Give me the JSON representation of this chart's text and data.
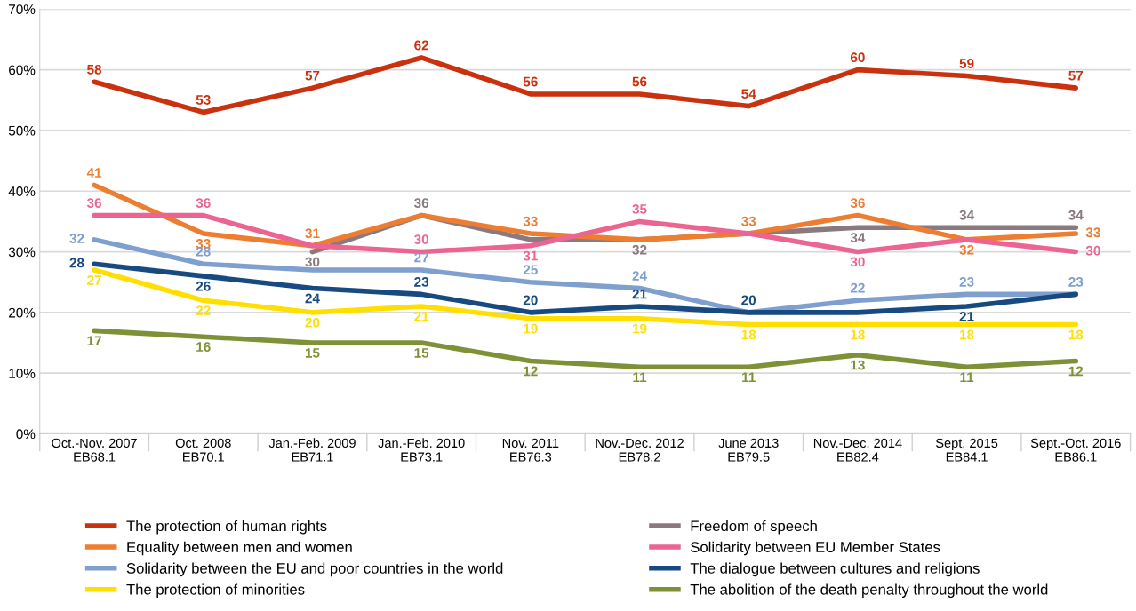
{
  "chart_data": {
    "type": "line",
    "categories": [
      "Oct.-Nov. 2007\nEB68.1",
      "Oct. 2008\nEB70.1",
      "Jan.-Feb. 2009\nEB71.1",
      "Jan.-Feb. 2010\nEB73.1",
      "Nov. 2011\nEB76.3",
      "Nov.-Dec. 2012\nEB78.2",
      "June 2013\nEB79.5",
      "Nov.-Dec. 2014\nEB82.4",
      "Sept. 2015\nEB84.1",
      "Sept.-Oct. 2016\nEB86.1"
    ],
    "series": [
      {
        "name": "The protection of human rights",
        "color": "#c9310f",
        "values": [
          58,
          53,
          57,
          62,
          56,
          56,
          54,
          60,
          59,
          57
        ],
        "value_labels": [
          "58",
          "53",
          "57",
          "62",
          "56",
          "56",
          "54",
          "60",
          "59",
          "57"
        ]
      },
      {
        "name": "Freedom of speech",
        "color": "#8a7a7f",
        "values": [
          null,
          null,
          30,
          36,
          32,
          32,
          33,
          34,
          34,
          34
        ],
        "value_labels": [
          null,
          null,
          "30",
          "36",
          null,
          "32",
          null,
          "34",
          "34",
          "34"
        ]
      },
      {
        "name": "Equality between men and women",
        "color": "#ed7d31",
        "values": [
          41,
          33,
          31,
          36,
          33,
          32,
          33,
          36,
          32,
          33
        ],
        "value_labels": [
          "41",
          "33",
          "31",
          null,
          "33",
          null,
          "33",
          "36",
          "32",
          "33"
        ]
      },
      {
        "name": "Solidarity between EU Member States",
        "color": "#ec6591",
        "values": [
          36,
          36,
          31,
          30,
          31,
          35,
          33,
          30,
          32,
          30
        ],
        "value_labels": [
          "36",
          "36",
          null,
          "30",
          "31",
          "35",
          null,
          "30",
          null,
          "30"
        ]
      },
      {
        "name": "Solidarity between the EU and poor countries in the world",
        "color": "#7f9fcf",
        "values": [
          32,
          28,
          27,
          27,
          25,
          24,
          20,
          22,
          23,
          23
        ],
        "value_labels": [
          "32",
          "28",
          null,
          "27",
          "25",
          "24",
          null,
          "22",
          "23",
          "23"
        ]
      },
      {
        "name": "The dialogue between cultures and religions",
        "color": "#174a80",
        "values": [
          28,
          26,
          24,
          23,
          20,
          21,
          20,
          20,
          21,
          23
        ],
        "value_labels": [
          "28",
          "26",
          "24",
          "23",
          "20",
          "21",
          "20",
          null,
          "21",
          null
        ]
      },
      {
        "name": "The protection of minorities",
        "color": "#ffdf00",
        "values": [
          27,
          22,
          20,
          21,
          19,
          19,
          18,
          18,
          18,
          18
        ],
        "value_labels": [
          "27",
          "22",
          "20",
          "21",
          "19",
          "19",
          "18",
          "18",
          "18",
          "18"
        ]
      },
      {
        "name": "The abolition of the death penalty throughout the world",
        "color": "#7f9137",
        "values": [
          17,
          16,
          15,
          15,
          12,
          11,
          11,
          13,
          11,
          12
        ],
        "value_labels": [
          "17",
          "16",
          "15",
          "15",
          "12",
          "11",
          "11",
          "13",
          "11",
          "12"
        ]
      }
    ],
    "ylim": [
      0,
      70
    ],
    "yticks": [
      {
        "value": 0,
        "label": "0%"
      },
      {
        "value": 10,
        "label": "10%"
      },
      {
        "value": 20,
        "label": "20%"
      },
      {
        "value": 30,
        "label": "30%"
      },
      {
        "value": 40,
        "label": "40%"
      },
      {
        "value": 50,
        "label": "50%"
      },
      {
        "value": 60,
        "label": "60%"
      },
      {
        "value": 70,
        "label": "70%"
      }
    ],
    "grid": "y",
    "legend": "bottom",
    "marker": "none",
    "line_style": "solid"
  }
}
